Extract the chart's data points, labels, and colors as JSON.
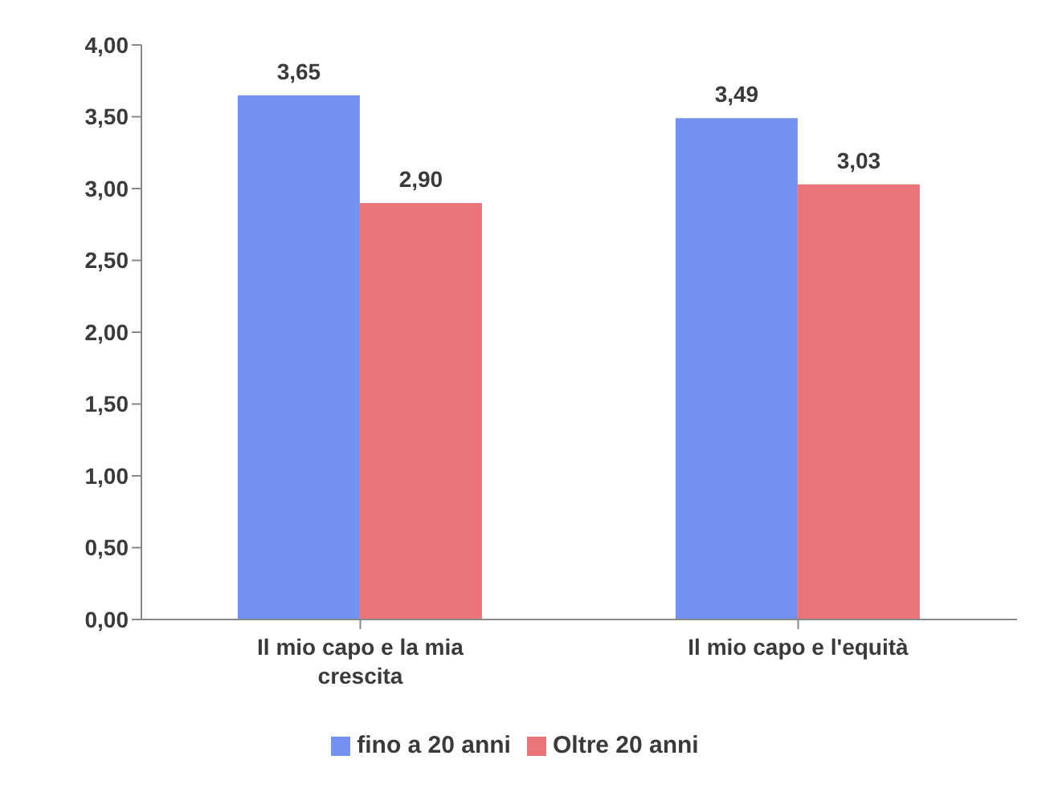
{
  "chart_data": {
    "type": "bar",
    "categories": [
      "Il mio capo e la mia crescita",
      "Il mio capo e l'equità"
    ],
    "series": [
      {
        "name": "fino a 20 anni",
        "color": "#7391f0",
        "values": [
          3.65,
          3.49
        ],
        "value_labels": [
          "3,65",
          "3,49"
        ]
      },
      {
        "name": "Oltre 20 anni",
        "color": "#ea7479",
        "values": [
          2.9,
          3.03
        ],
        "value_labels": [
          "2,90",
          "3,03"
        ]
      }
    ],
    "ylim": [
      0,
      4
    ],
    "yticks": [
      {
        "value": 0,
        "label": "0,00"
      },
      {
        "value": 0.5,
        "label": "0,50"
      },
      {
        "value": 1,
        "label": "1,00"
      },
      {
        "value": 1.5,
        "label": "1,50"
      },
      {
        "value": 2,
        "label": "2,00"
      },
      {
        "value": 2.5,
        "label": "2,50"
      },
      {
        "value": 3,
        "label": "3,00"
      },
      {
        "value": 3.5,
        "label": "3,50"
      },
      {
        "value": 4,
        "label": "4,00"
      }
    ],
    "grid": false,
    "legend": "bottom"
  }
}
